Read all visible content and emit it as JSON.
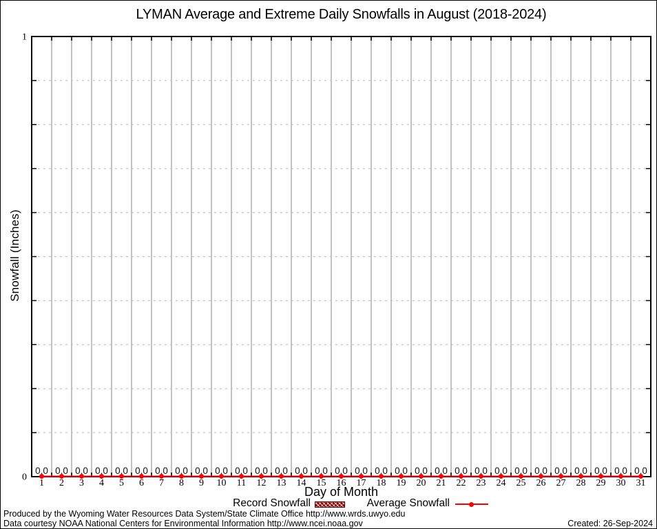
{
  "title": "LYMAN Average and Extreme Daily Snowfalls in August (2018-2024)",
  "y_axis": {
    "label": "Snowfall (Inches)",
    "ticks": [
      {
        "value": 1,
        "label": "1"
      },
      {
        "value": 0,
        "label": "0"
      }
    ]
  },
  "x_axis": {
    "label": "Day of Month"
  },
  "legend": {
    "record_label": "Record Snowfall",
    "average_label": "Average Snowfall"
  },
  "footer": {
    "line1": "Produced by the Wyoming Water Resources Data System/State Climate Office http://www.wrds.uwyo.edu",
    "line2": "Data courtesy NOAA National Centers for Environmental Information http://www.ncei.noaa.gov",
    "created": "Created: 26-Sep-2024"
  },
  "colors": {
    "average_series": "#ff0000",
    "record_series": "#8b0000",
    "grid_vertical": "#c2c2c2",
    "grid_horizontal": "#b5b5b5",
    "frame": "#000000",
    "text": "#000000"
  },
  "chart_data": {
    "type": "line",
    "title": "LYMAN Average and Extreme Daily Snowfalls in August (2018-2024)",
    "xlabel": "Day of Month",
    "ylabel": "Snowfall (Inches)",
    "xlim": [
      0.5,
      31.5
    ],
    "ylim": [
      0,
      1
    ],
    "x": [
      1,
      2,
      3,
      4,
      5,
      6,
      7,
      8,
      9,
      10,
      11,
      12,
      13,
      14,
      15,
      16,
      17,
      18,
      19,
      20,
      21,
      22,
      23,
      24,
      25,
      26,
      27,
      28,
      29,
      30,
      31
    ],
    "grid": {
      "vertical_lines": "solid, between each day",
      "horizontal_lines": "dotted, every 0.1"
    },
    "legend_position": "bottom, below x-axis title",
    "value_label_format": "%.1f",
    "series": [
      {
        "name": "Record Snowfall",
        "style": "bar",
        "color": "#8b0000",
        "values": [
          0.0,
          0.0,
          0.0,
          0.0,
          0.0,
          0.0,
          0.0,
          0.0,
          0.0,
          0.0,
          0.0,
          0.0,
          0.0,
          0.0,
          0.0,
          0.0,
          0.0,
          0.0,
          0.0,
          0.0,
          0.0,
          0.0,
          0.0,
          0.0,
          0.0,
          0.0,
          0.0,
          0.0,
          0.0,
          0.0,
          0.0
        ]
      },
      {
        "name": "Average Snowfall",
        "style": "line-with-points",
        "color": "#ff0000",
        "marker": "filled-circle",
        "values": [
          0.0,
          0.0,
          0.0,
          0.0,
          0.0,
          0.0,
          0.0,
          0.0,
          0.0,
          0.0,
          0.0,
          0.0,
          0.0,
          0.0,
          0.0,
          0.0,
          0.0,
          0.0,
          0.0,
          0.0,
          0.0,
          0.0,
          0.0,
          0.0,
          0.0,
          0.0,
          0.0,
          0.0,
          0.0,
          0.0,
          0.0
        ],
        "value_labels_shown": true
      }
    ]
  }
}
